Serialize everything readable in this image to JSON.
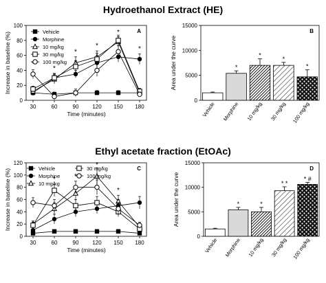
{
  "figure": {
    "he_title": "Hydroethanol Extract (HE)",
    "etoac_title": "Ethyl acetate fraction (EtOAc)"
  },
  "chart_data": [
    {
      "id": "A",
      "type": "line",
      "panel_label": "A",
      "xlabel": "Time (minutes)",
      "ylabel": "Increase in baseline (%)",
      "x": [
        30,
        60,
        90,
        120,
        150,
        180
      ],
      "xlim": [
        30,
        180
      ],
      "ylim": [
        0,
        100
      ],
      "yticks": [
        0,
        20,
        40,
        60,
        80,
        100
      ],
      "legend_position": "top-left",
      "series": [
        {
          "name": "Vehicle",
          "marker": "square-filled",
          "values": [
            10,
            8,
            10,
            10,
            10,
            10
          ],
          "err": [
            3,
            3,
            3,
            3,
            3,
            3
          ]
        },
        {
          "name": "Morphine",
          "marker": "circle-filled",
          "values": [
            10,
            30,
            35,
            50,
            58,
            55
          ],
          "err": [
            4,
            5,
            5,
            6,
            7,
            7
          ]
        },
        {
          "name": "10 mg/kg",
          "marker": "triangle-open",
          "values": [
            12,
            28,
            50,
            58,
            78,
            10
          ],
          "err": [
            4,
            6,
            8,
            8,
            7,
            4
          ]
        },
        {
          "name": "30 mg/kg",
          "marker": "square-open",
          "values": [
            15,
            30,
            45,
            55,
            80,
            12
          ],
          "err": [
            4,
            6,
            8,
            8,
            7,
            4
          ]
        },
        {
          "name": "100 mg/kg",
          "marker": "circle-open",
          "values": [
            35,
            5,
            10,
            40,
            65,
            8
          ],
          "err": [
            6,
            4,
            5,
            8,
            8,
            3
          ]
        }
      ],
      "annotations": [
        {
          "x": 30,
          "y": 46,
          "text": "*"
        },
        {
          "x": 60,
          "y": 40,
          "text": "*"
        },
        {
          "x": 90,
          "y": 62,
          "text": "*"
        },
        {
          "x": 120,
          "y": 70,
          "text": "*"
        },
        {
          "x": 150,
          "y": 88,
          "text": "*"
        },
        {
          "x": 180,
          "y": 66,
          "text": "*"
        }
      ]
    },
    {
      "id": "B",
      "type": "bar",
      "panel_label": "B",
      "ylabel": "Area under the curve",
      "categories": [
        "Vehicle",
        "Morphine",
        "10 mg/kg",
        "30 mg/kg",
        "100 mg/kg"
      ],
      "values": [
        1500,
        5400,
        7000,
        7000,
        4700
      ],
      "err": [
        150,
        500,
        1300,
        600,
        1400
      ],
      "ylim": [
        0,
        15000
      ],
      "yticks": [
        0,
        5000,
        10000,
        15000
      ],
      "fills": [
        "white",
        "lightgray",
        "dark-hatch",
        "diagonal-hatch",
        "checker"
      ],
      "annotations": [
        "",
        "*",
        "*",
        "*",
        "*"
      ]
    },
    {
      "id": "C",
      "type": "line",
      "panel_label": "C",
      "xlabel": "Time (minutes)",
      "ylabel": "Increase in baseline (%)",
      "x": [
        30,
        60,
        90,
        120,
        150,
        180
      ],
      "xlim": [
        30,
        180
      ],
      "ylim": [
        0,
        120
      ],
      "yticks": [
        0,
        20,
        40,
        60,
        80,
        100,
        120
      ],
      "legend_position": "top",
      "series": [
        {
          "name": "Vehicle",
          "marker": "square-filled",
          "values": [
            5,
            8,
            8,
            8,
            8,
            5
          ],
          "err": [
            3,
            3,
            3,
            3,
            3,
            3
          ]
        },
        {
          "name": "Morphine",
          "marker": "circle-filled",
          "values": [
            10,
            28,
            40,
            45,
            50,
            55
          ],
          "err": [
            5,
            8,
            8,
            8,
            10,
            10
          ]
        },
        {
          "name": "10 mg/kg",
          "marker": "triangle-open",
          "values": [
            20,
            45,
            70,
            98,
            57,
            15
          ],
          "err": [
            5,
            10,
            12,
            14,
            10,
            5
          ]
        },
        {
          "name": "30 mg/kg",
          "marker": "square-open",
          "values": [
            18,
            75,
            50,
            55,
            40,
            12
          ],
          "err": [
            5,
            10,
            10,
            10,
            8,
            4
          ]
        },
        {
          "name": "100 mg/kg",
          "marker": "circle-open",
          "values": [
            55,
            50,
            80,
            80,
            45,
            18
          ],
          "err": [
            8,
            10,
            10,
            12,
            10,
            5
          ]
        }
      ],
      "annotations": [
        {
          "x": 60,
          "y": 90,
          "text": "*"
        },
        {
          "x": 90,
          "y": 95,
          "text": "*"
        },
        {
          "x": 120,
          "y": 113,
          "text": "*"
        },
        {
          "x": 150,
          "y": 72,
          "text": "*"
        }
      ]
    },
    {
      "id": "D",
      "type": "bar",
      "panel_label": "D",
      "ylabel": "Area under the curve",
      "categories": [
        "Vehicle",
        "Morphine",
        "10 mg/kg",
        "30 mg/kg",
        "100 mg/kg"
      ],
      "values": [
        1500,
        5400,
        5000,
        9300,
        10600
      ],
      "err": [
        150,
        500,
        900,
        800,
        400
      ],
      "ylim": [
        0,
        15000
      ],
      "yticks": [
        0,
        5000,
        10000,
        15000
      ],
      "fills": [
        "white",
        "lightgray",
        "dark-hatch",
        "diagonal-hatch",
        "checker"
      ],
      "annotations": [
        "",
        "*",
        "*",
        "* *",
        "* #"
      ]
    }
  ]
}
